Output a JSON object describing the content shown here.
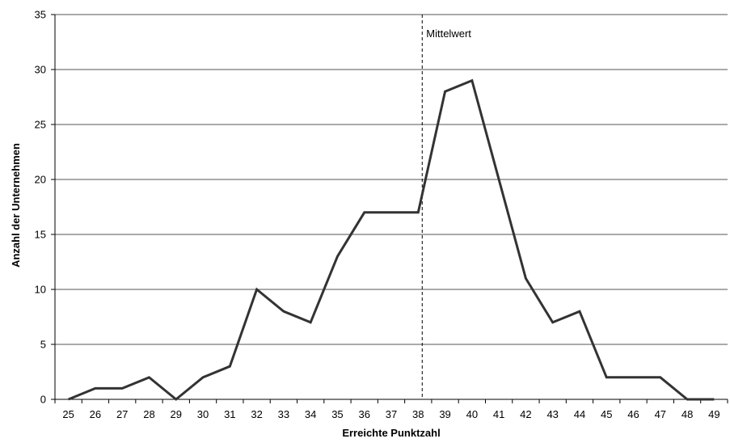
{
  "chart_data": {
    "type": "line",
    "title": "",
    "xlabel": "Erreichte Punktzahl",
    "ylabel": "Anzahl der Unternehmen",
    "categories": [
      "25",
      "26",
      "27",
      "28",
      "29",
      "30",
      "31",
      "32",
      "33",
      "34",
      "35",
      "36",
      "37",
      "38",
      "39",
      "40",
      "41",
      "42",
      "43",
      "44",
      "45",
      "46",
      "47",
      "48",
      "49"
    ],
    "series": [
      {
        "values": [
          0,
          1,
          1,
          2,
          0,
          2,
          3,
          10,
          8,
          7,
          13,
          17,
          17,
          17,
          28,
          29,
          20,
          11,
          7,
          8,
          2,
          2,
          2,
          0,
          0
        ]
      }
    ],
    "ylim": [
      0,
      35
    ],
    "yticks": [
      0,
      5,
      10,
      15,
      20,
      25,
      30,
      35
    ],
    "grid": true,
    "legend": "none",
    "annotations": [
      {
        "text": "Mittelwert",
        "x_value": 38.15,
        "style": "dashed-vertical-line"
      }
    ],
    "colors": {
      "line": "#333333",
      "grid": "#555555",
      "axis": "#000000",
      "annotation_line": "#000000"
    }
  }
}
